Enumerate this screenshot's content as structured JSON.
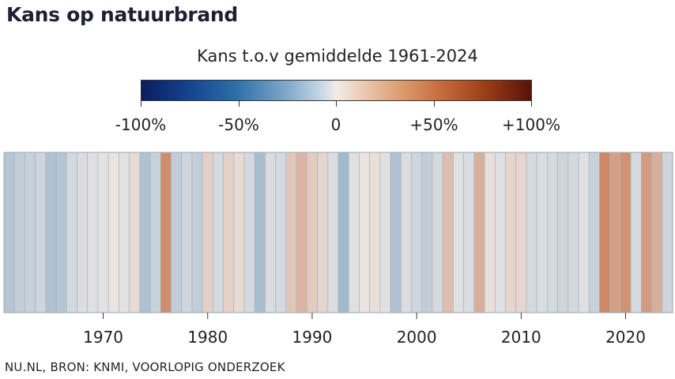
{
  "header": {
    "title": "Kans op natuurbrand",
    "legend_title": "Kans t.o.v gemiddelde 1961-2024"
  },
  "colorbar": {
    "ticks": [
      "-100%",
      "-50%",
      "0",
      "+50%",
      "+100%"
    ],
    "stops": [
      "#0a1e5e",
      "#2c6ea8",
      "#f1ece8",
      "#c8703f",
      "#5a1208"
    ]
  },
  "footer": {
    "source": "NU.NL, BRON: KNMI,  VOORLOPIG ONDERZOEK"
  },
  "chart_data": {
    "type": "heatmap",
    "x_tick_labels": [
      "1970",
      "1980",
      "1990",
      "2000",
      "2010",
      "2020"
    ],
    "xlim": [
      1961,
      2024
    ],
    "value_unit": "%",
    "years": [
      1961,
      1962,
      1963,
      1964,
      1965,
      1966,
      1967,
      1968,
      1969,
      1970,
      1971,
      1972,
      1973,
      1974,
      1975,
      1976,
      1977,
      1978,
      1979,
      1980,
      1981,
      1982,
      1983,
      1984,
      1985,
      1986,
      1987,
      1988,
      1989,
      1990,
      1991,
      1992,
      1993,
      1994,
      1995,
      1996,
      1997,
      1998,
      1999,
      2000,
      2001,
      2002,
      2003,
      2004,
      2005,
      2006,
      2007,
      2008,
      2009,
      2010,
      2011,
      2012,
      2013,
      2014,
      2015,
      2016,
      2017,
      2018,
      2019,
      2020,
      2021,
      2022,
      2023,
      2024
    ],
    "values": [
      -18,
      -14,
      -12,
      -10,
      -20,
      -18,
      -8,
      -6,
      -4,
      -3,
      2,
      -3,
      6,
      -20,
      -12,
      38,
      -14,
      -10,
      -14,
      10,
      -8,
      10,
      6,
      -8,
      -22,
      -6,
      -8,
      14,
      22,
      12,
      8,
      -6,
      -24,
      -4,
      2,
      4,
      -4,
      -20,
      -6,
      -10,
      -14,
      -8,
      18,
      -4,
      -6,
      24,
      4,
      -4,
      8,
      8,
      -8,
      -6,
      -8,
      -10,
      -8,
      -4,
      -12,
      40,
      30,
      36,
      -8,
      32,
      24,
      -10
    ]
  }
}
